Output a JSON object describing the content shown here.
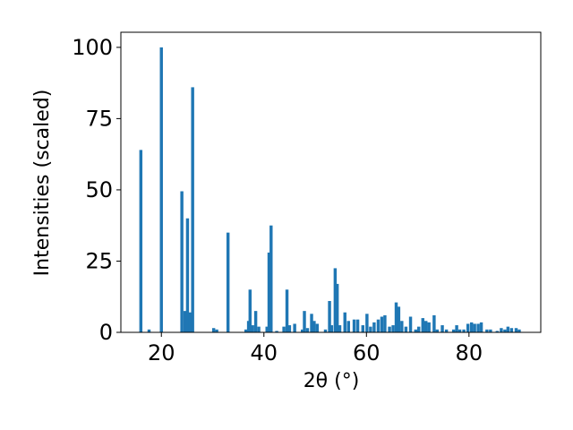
{
  "chart_data": {
    "type": "bar",
    "xlabel": "2θ (°)",
    "ylabel": "Intensities (scaled)",
    "color": "#1f77b4",
    "x": [
      16.0,
      17.6,
      20.0,
      24.0,
      24.6,
      25.1,
      25.6,
      26.1,
      30.2,
      30.8,
      33.0,
      36.5,
      37.0,
      37.3,
      37.8,
      38.4,
      39.0,
      40.6,
      41.0,
      41.4,
      42.5,
      43.9,
      44.5,
      45.0,
      46.0,
      47.5,
      47.9,
      48.5,
      49.3,
      49.8,
      50.4,
      52.0,
      52.8,
      53.2,
      53.9,
      54.3,
      54.8,
      55.8,
      56.5,
      57.6,
      58.3,
      59.3,
      60.1,
      60.8,
      61.5,
      62.3,
      63.0,
      63.6,
      64.5,
      65.2,
      65.8,
      66.3,
      66.9,
      67.7,
      68.6,
      69.6,
      70.2,
      71.0,
      71.6,
      72.2,
      73.2,
      73.8,
      74.8,
      75.6,
      77.0,
      77.6,
      78.2,
      79.0,
      79.8,
      80.5,
      81.1,
      81.8,
      82.4,
      83.5,
      84.2,
      85.5,
      86.3,
      87.0,
      87.6,
      88.3,
      89.2,
      89.8
    ],
    "values": [
      64,
      1,
      100,
      49.5,
      7.5,
      40,
      7,
      86,
      1.5,
      1,
      35,
      1,
      4,
      15,
      2.5,
      7.5,
      2,
      2,
      28,
      37.5,
      0.5,
      2,
      15,
      2.5,
      3,
      1,
      7.5,
      1.5,
      6.5,
      4,
      3,
      1,
      11,
      2.5,
      22.5,
      17,
      2.5,
      7,
      4,
      4.5,
      4.5,
      2.5,
      6.5,
      2,
      3.5,
      4.5,
      5.5,
      6,
      2,
      2.5,
      10.5,
      9,
      4,
      2,
      5.5,
      1,
      2,
      5,
      4,
      3.5,
      6,
      1,
      2.5,
      1,
      1,
      2.5,
      1,
      1,
      3,
      3.5,
      3,
      3,
      3.5,
      1,
      1,
      0.5,
      1.5,
      1,
      2,
      1.5,
      1.5,
      1
    ],
    "xlim": [
      12.1,
      94.0
    ],
    "ylim": [
      0,
      105.3
    ],
    "xticks": [
      20,
      40,
      60,
      80
    ],
    "yticks": [
      0,
      25,
      50,
      75,
      100
    ]
  }
}
